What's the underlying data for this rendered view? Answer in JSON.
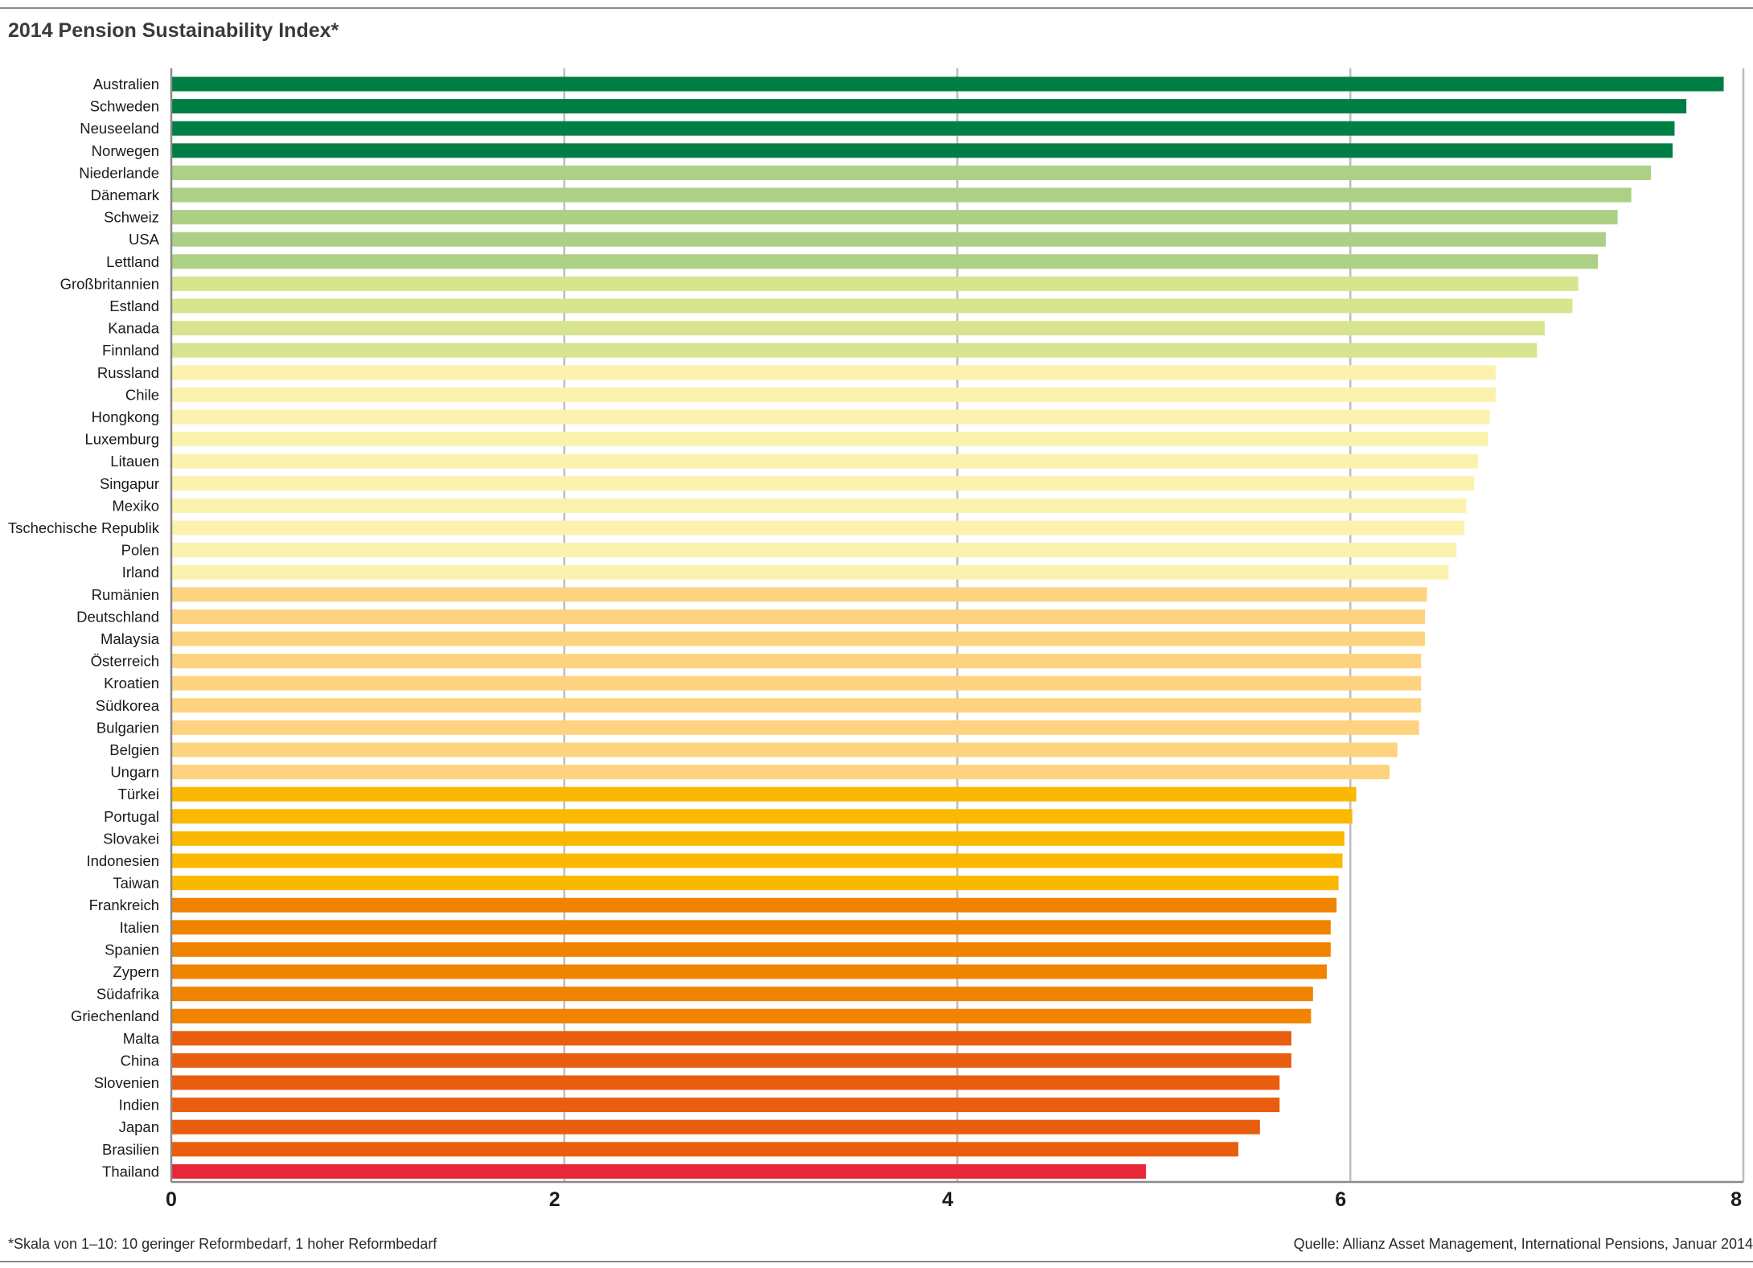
{
  "header": {
    "title": "2014 Pension Sustainability Index*"
  },
  "footer": {
    "note": "*Skala von 1–10: 10 geringer Reformbedarf, 1 hoher Reformbedarf",
    "source": "Quelle: Allianz Asset Management, International Pensions, Januar 2014"
  },
  "chart_data": {
    "type": "bar",
    "orientation": "horizontal",
    "title": "2014 Pension Sustainability Index*",
    "xlabel": "",
    "ylabel": "",
    "xlim": [
      0,
      8
    ],
    "xticks": [
      0,
      2,
      4,
      6,
      8
    ],
    "grid": true,
    "legend": "none",
    "categories": [
      "Australien",
      "Schweden",
      "Neuseeland",
      "Norwegen",
      "Niederlande",
      "Dänemark",
      "Schweiz",
      "USA",
      "Lettland",
      "Großbritannien",
      "Estland",
      "Kanada",
      "Finnland",
      "Russland",
      "Chile",
      "Hongkong",
      "Luxemburg",
      "Litauen",
      "Singapur",
      "Mexiko",
      "Tschechische Republik",
      "Polen",
      "Irland",
      "Rumänien",
      "Deutschland",
      "Malaysia",
      "Österreich",
      "Kroatien",
      "Südkorea",
      "Bulgarien",
      "Belgien",
      "Ungarn",
      "Türkei",
      "Portugal",
      "Slovakei",
      "Indonesien",
      "Taiwan",
      "Frankreich",
      "Italien",
      "Spanien",
      "Zypern",
      "Südafrika",
      "Griechenland",
      "Malta",
      "China",
      "Slovenien",
      "Indien",
      "Japan",
      "Brasilien",
      "Thailand"
    ],
    "values": [
      7.9,
      7.71,
      7.65,
      7.64,
      7.53,
      7.43,
      7.36,
      7.3,
      7.26,
      7.16,
      7.13,
      6.99,
      6.95,
      6.74,
      6.74,
      6.71,
      6.7,
      6.65,
      6.63,
      6.59,
      6.58,
      6.54,
      6.5,
      6.39,
      6.38,
      6.38,
      6.36,
      6.36,
      6.36,
      6.35,
      6.24,
      6.2,
      6.03,
      6.01,
      5.97,
      5.96,
      5.94,
      5.93,
      5.9,
      5.9,
      5.88,
      5.81,
      5.8,
      5.7,
      5.7,
      5.64,
      5.64,
      5.54,
      5.43,
      4.96
    ],
    "colors": [
      "#007f45",
      "#007f45",
      "#007f45",
      "#007f45",
      "#acd084",
      "#acd084",
      "#acd084",
      "#acd084",
      "#acd084",
      "#d9e48f",
      "#d9e48f",
      "#d9e48f",
      "#d9e48f",
      "#fbf2ad",
      "#fbf2ad",
      "#fbf2ad",
      "#fbf2ad",
      "#fbf2ad",
      "#fbf2ad",
      "#fbf2ad",
      "#fbf2ad",
      "#fbf2ad",
      "#fbf2ad",
      "#fdd37f",
      "#fdd37f",
      "#fdd37f",
      "#fdd37f",
      "#fdd37f",
      "#fdd37f",
      "#fdd37f",
      "#fdd37f",
      "#fdd37f",
      "#fbb800",
      "#fbb800",
      "#fbb800",
      "#fbb800",
      "#fbb800",
      "#f08300",
      "#f08300",
      "#f08300",
      "#f08300",
      "#f08300",
      "#f08300",
      "#e95d0f",
      "#e95d0f",
      "#e95d0f",
      "#e95d0f",
      "#e95d0f",
      "#e95d0f",
      "#e6283a"
    ],
    "gridline_color": "#bdbdbd",
    "axis_color": "#8a8a8a"
  }
}
